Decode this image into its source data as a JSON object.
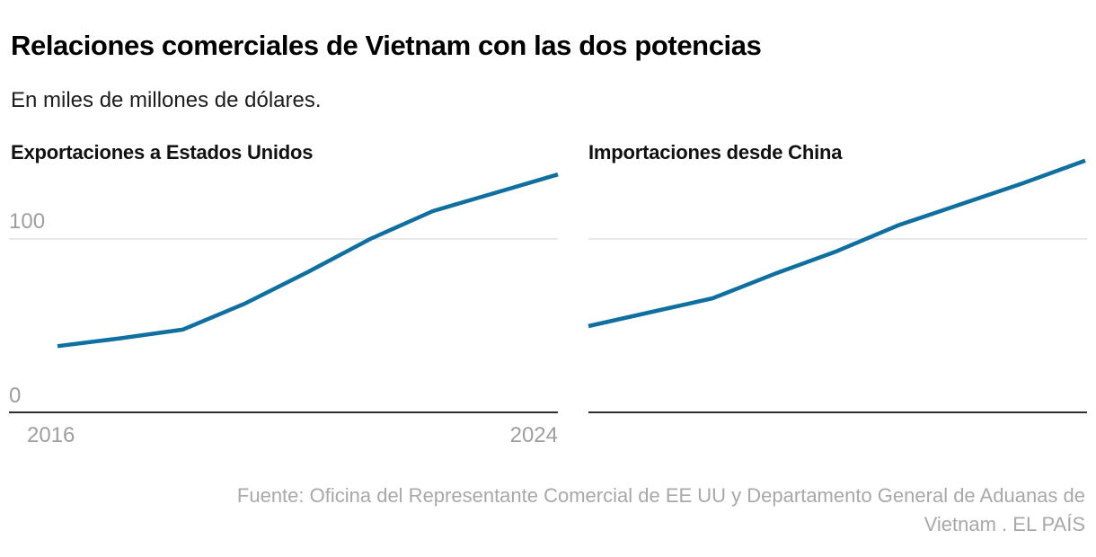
{
  "header": {
    "title": "Relaciones comerciales de Vietnam con las dos potencias",
    "subtitle": "En miles de millones de dólares."
  },
  "chart_data": [
    {
      "type": "line",
      "title": "Exportaciones a Estados Unidos",
      "x": [
        2016,
        2017,
        2018,
        2019,
        2020,
        2021,
        2022,
        2023,
        2024
      ],
      "values": [
        38.5,
        43,
        48,
        63,
        81,
        100,
        116,
        126.5,
        137
      ],
      "xlabel": "",
      "ylabel": "",
      "ylim": [
        0,
        150
      ],
      "y_gridlines": [
        100
      ],
      "y_ticks": [
        "100",
        "0"
      ],
      "x_ticks": [
        "2016",
        "2024"
      ],
      "legend": "none",
      "line_color": "#0e6fa0"
    },
    {
      "type": "line",
      "title": "Importaciones desde China",
      "x": [
        2016,
        2017,
        2018,
        2019,
        2020,
        2021,
        2022,
        2023,
        2024
      ],
      "values": [
        50,
        58,
        66,
        80,
        93,
        108,
        120,
        132,
        145
      ],
      "xlabel": "",
      "ylabel": "",
      "ylim": [
        0,
        150
      ],
      "y_gridlines": [
        100
      ],
      "y_ticks": [],
      "x_ticks": [],
      "legend": "none",
      "line_color": "#0e6fa0"
    }
  ],
  "footer": {
    "source_lines": [
      "Fuente: Oficina del Representante Comercial de EE UU y Departamento General de Aduanas de",
      "Vietnam . EL PAÍS"
    ]
  },
  "colors": {
    "accent_line": "#0e6fa0",
    "gridline": "#e9e9e9",
    "axis": "#2e2e2e",
    "tick_text": "#9e9e9e",
    "source_text": "#a8a8a8",
    "title_text": "#000000"
  }
}
